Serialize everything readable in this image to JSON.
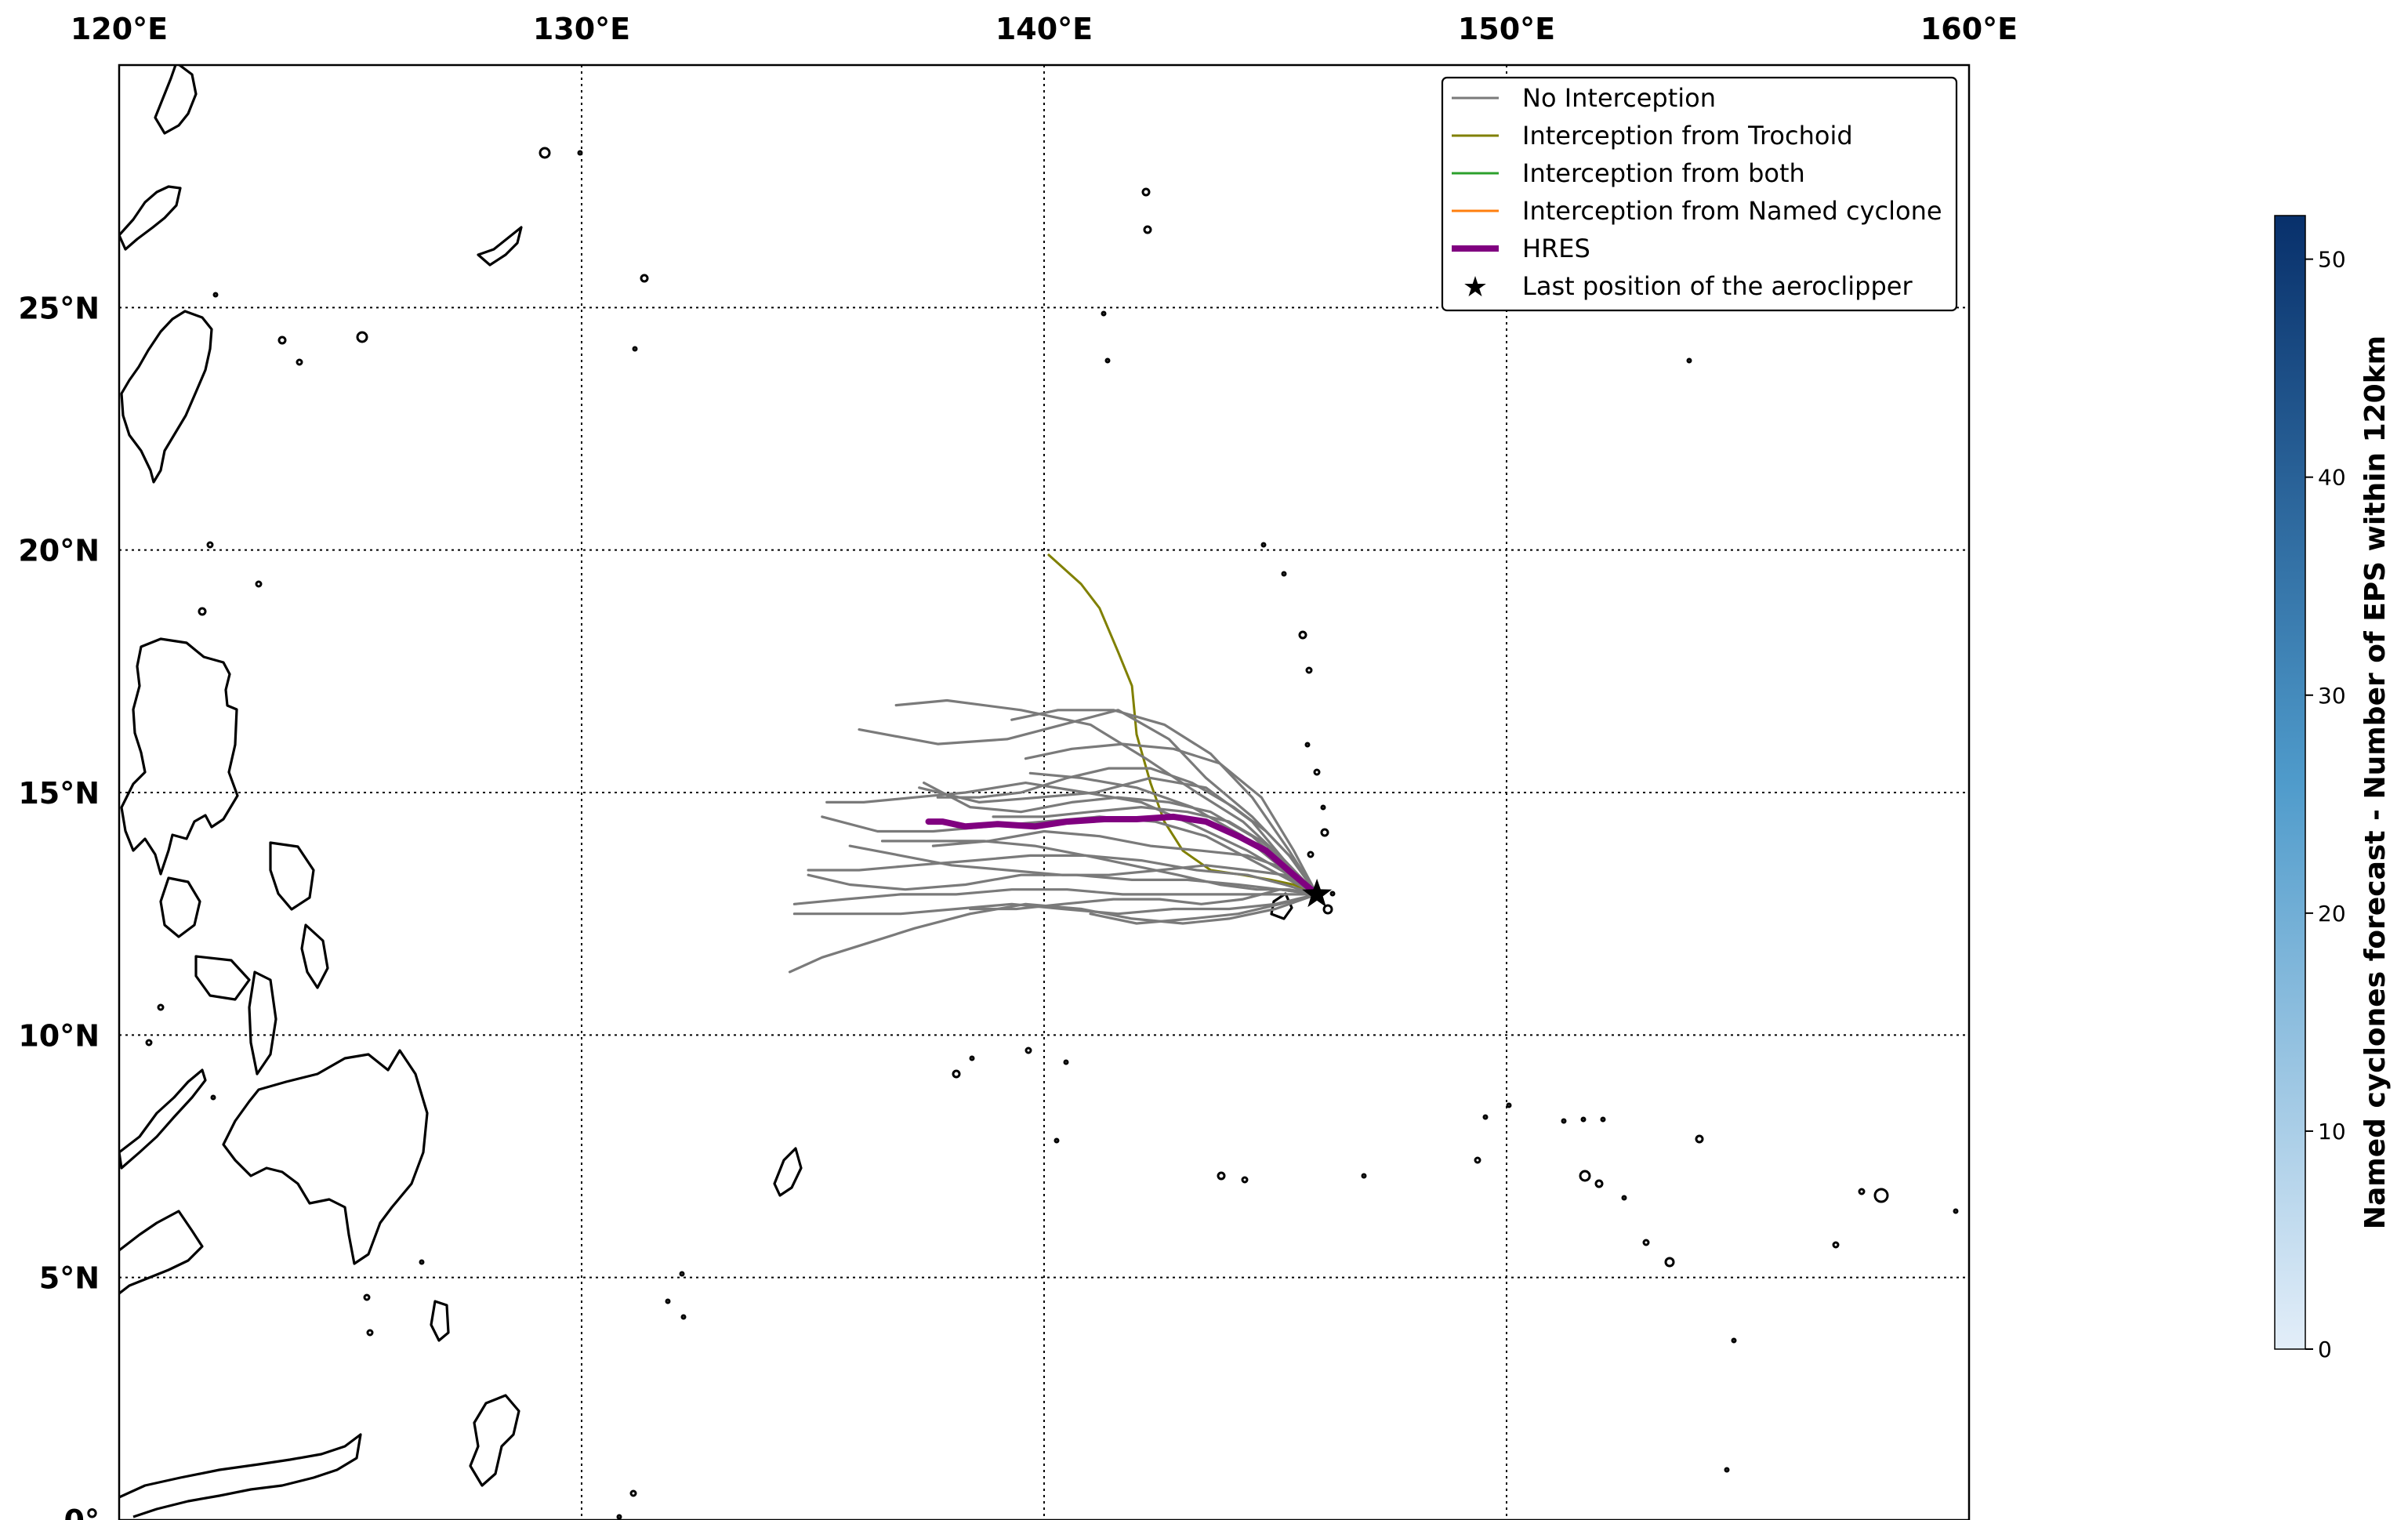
{
  "map": {
    "lon_range": [
      120,
      160
    ],
    "lat_range": [
      0,
      30
    ],
    "lon_ticks": [
      {
        "value": 120,
        "label": "120°E"
      },
      {
        "value": 130,
        "label": "130°E"
      },
      {
        "value": 140,
        "label": "140°E"
      },
      {
        "value": 150,
        "label": "150°E"
      },
      {
        "value": 160,
        "label": "160°E"
      }
    ],
    "lat_ticks": [
      {
        "value": 0,
        "label": "0°"
      },
      {
        "value": 5,
        "label": "5°N"
      },
      {
        "value": 10,
        "label": "10°N"
      },
      {
        "value": 15,
        "label": "15°N"
      },
      {
        "value": 20,
        "label": "20°N"
      },
      {
        "value": 25,
        "label": "25°N"
      }
    ],
    "grid": true,
    "colors": {
      "no_interception": "#7a7a7a",
      "interception_trochoid": "#808000",
      "interception_both": "#2ca02c",
      "interception_named": "#ff7f0e",
      "hres": "#800080",
      "coastline": "#000000"
    }
  },
  "legend": {
    "position": "top-right",
    "entries": [
      {
        "label": "No Interception",
        "style": "line",
        "color": "#7a7a7a"
      },
      {
        "label": "Interception from Trochoid",
        "style": "line",
        "color": "#808000"
      },
      {
        "label": "Interception from both",
        "style": "line",
        "color": "#2ca02c"
      },
      {
        "label": "Interception from Named cyclone",
        "style": "line",
        "color": "#ff7f0e"
      },
      {
        "label": "HRES",
        "style": "thick-line",
        "color": "#800080"
      },
      {
        "label": "Last position of the aeroclipper",
        "style": "star",
        "color": "#000000"
      }
    ]
  },
  "colorbar": {
    "title": "Named cyclones forecast - Number of EPS within 120km",
    "min": 0,
    "max": 52,
    "ticks": [
      "0",
      "10",
      "20",
      "30",
      "40",
      "50"
    ],
    "color_low": "#e3eef9",
    "color_high": "#08306b"
  },
  "chart_data": {
    "type": "line",
    "x_unit": "degrees east",
    "y_unit": "degrees north",
    "aeroclipper_last_position": [
      145.9,
      12.9
    ],
    "series": [
      {
        "category": "HRES",
        "points": [
          [
            145.9,
            12.9
          ],
          [
            145.4,
            13.3
          ],
          [
            144.8,
            13.8
          ],
          [
            144.2,
            14.1
          ],
          [
            143.5,
            14.4
          ],
          [
            142.8,
            14.5
          ],
          [
            142.0,
            14.45
          ],
          [
            141.3,
            14.45
          ],
          [
            140.5,
            14.4
          ],
          [
            139.8,
            14.3
          ],
          [
            139.0,
            14.35
          ],
          [
            138.3,
            14.3
          ],
          [
            137.8,
            14.4
          ],
          [
            137.5,
            14.4
          ]
        ]
      },
      {
        "category": "Interception from Trochoid",
        "points": [
          [
            145.9,
            12.9
          ],
          [
            145.4,
            13.1
          ],
          [
            144.9,
            13.2
          ],
          [
            144.3,
            13.3
          ],
          [
            143.6,
            13.4
          ],
          [
            143.0,
            13.8
          ],
          [
            142.6,
            14.4
          ],
          [
            142.3,
            15.2
          ],
          [
            142.0,
            16.2
          ],
          [
            141.9,
            17.2
          ],
          [
            141.6,
            17.9
          ],
          [
            141.2,
            18.8
          ],
          [
            140.8,
            19.3
          ],
          [
            140.1,
            19.9
          ]
        ]
      },
      {
        "category": "No Interception",
        "points": [
          [
            145.9,
            12.9
          ],
          [
            145.2,
            13.6
          ],
          [
            144.3,
            14.4
          ],
          [
            143.3,
            15.0
          ],
          [
            142.2,
            15.7
          ],
          [
            141.0,
            16.4
          ],
          [
            139.5,
            16.7
          ],
          [
            137.9,
            16.9
          ],
          [
            136.8,
            16.8
          ]
        ]
      },
      {
        "category": "No Interception",
        "points": [
          [
            145.9,
            12.9
          ],
          [
            145.3,
            13.7
          ],
          [
            144.5,
            14.5
          ],
          [
            143.5,
            15.3
          ],
          [
            142.7,
            16.1
          ],
          [
            141.6,
            16.7
          ],
          [
            140.4,
            16.4
          ],
          [
            139.2,
            16.1
          ],
          [
            137.7,
            16.0
          ],
          [
            136.0,
            16.3
          ]
        ]
      },
      {
        "category": "No Interception",
        "points": [
          [
            145.9,
            12.9
          ],
          [
            145.3,
            13.8
          ],
          [
            144.5,
            14.9
          ],
          [
            143.6,
            15.8
          ],
          [
            142.6,
            16.4
          ],
          [
            141.5,
            16.7
          ],
          [
            140.3,
            16.7
          ],
          [
            139.3,
            16.5
          ]
        ]
      },
      {
        "category": "No Interception",
        "points": [
          [
            145.9,
            12.9
          ],
          [
            145.3,
            13.3
          ],
          [
            144.4,
            13.8
          ],
          [
            143.3,
            14.3
          ],
          [
            142.1,
            14.8
          ],
          [
            140.9,
            15.0
          ],
          [
            139.6,
            15.2
          ],
          [
            138.3,
            15.0
          ],
          [
            137.2,
            14.9
          ],
          [
            136.1,
            14.8
          ],
          [
            135.3,
            14.8
          ]
        ]
      },
      {
        "category": "No Interception",
        "points": [
          [
            145.9,
            12.9
          ],
          [
            145.2,
            13.6
          ],
          [
            144.5,
            14.4
          ],
          [
            143.5,
            15.1
          ],
          [
            142.3,
            15.3
          ],
          [
            141.1,
            15.0
          ],
          [
            139.9,
            14.9
          ],
          [
            138.6,
            14.8
          ],
          [
            137.3,
            15.1
          ]
        ]
      },
      {
        "category": "No Interception",
        "points": [
          [
            145.9,
            12.9
          ],
          [
            145.3,
            13.2
          ],
          [
            144.5,
            13.6
          ],
          [
            143.5,
            14.1
          ],
          [
            142.4,
            14.4
          ],
          [
            141.2,
            14.5
          ],
          [
            140.0,
            14.4
          ],
          [
            138.8,
            14.3
          ],
          [
            137.6,
            14.2
          ],
          [
            136.4,
            14.2
          ],
          [
            135.2,
            14.5
          ]
        ]
      },
      {
        "category": "No Interception",
        "points": [
          [
            145.9,
            12.9
          ],
          [
            145.3,
            13.4
          ],
          [
            144.4,
            13.7
          ],
          [
            143.4,
            13.8
          ],
          [
            142.3,
            13.9
          ],
          [
            141.2,
            14.1
          ],
          [
            140.0,
            14.2
          ],
          [
            138.8,
            14.0
          ],
          [
            137.6,
            13.9
          ]
        ]
      },
      {
        "category": "No Interception",
        "points": [
          [
            145.9,
            12.9
          ],
          [
            145.2,
            13.1
          ],
          [
            144.4,
            13.3
          ],
          [
            143.3,
            13.4
          ],
          [
            142.1,
            13.6
          ],
          [
            140.9,
            13.7
          ],
          [
            139.7,
            13.7
          ],
          [
            138.5,
            13.6
          ],
          [
            137.2,
            13.5
          ],
          [
            136.0,
            13.4
          ],
          [
            134.9,
            13.4
          ]
        ]
      },
      {
        "category": "No Interception",
        "points": [
          [
            145.9,
            12.9
          ],
          [
            145.1,
            13.0
          ],
          [
            144.2,
            13.1
          ],
          [
            143.1,
            13.2
          ],
          [
            141.9,
            13.2
          ],
          [
            140.7,
            13.3
          ],
          [
            139.5,
            13.3
          ],
          [
            138.3,
            13.1
          ],
          [
            137.0,
            13.0
          ],
          [
            135.8,
            13.1
          ],
          [
            134.9,
            13.3
          ]
        ]
      },
      {
        "category": "No Interception",
        "points": [
          [
            145.9,
            12.9
          ],
          [
            145.0,
            12.9
          ],
          [
            144.0,
            12.9
          ],
          [
            142.9,
            12.9
          ],
          [
            141.7,
            12.9
          ],
          [
            140.5,
            13.0
          ],
          [
            139.3,
            13.0
          ],
          [
            138.1,
            12.9
          ],
          [
            136.9,
            12.9
          ],
          [
            135.7,
            12.8
          ],
          [
            134.6,
            12.7
          ]
        ]
      },
      {
        "category": "No Interception",
        "points": [
          [
            145.9,
            12.9
          ],
          [
            145.0,
            12.7
          ],
          [
            144.0,
            12.6
          ],
          [
            142.8,
            12.6
          ],
          [
            141.6,
            12.5
          ],
          [
            140.4,
            12.6
          ],
          [
            139.3,
            12.7
          ],
          [
            138.1,
            12.6
          ],
          [
            136.9,
            12.5
          ],
          [
            135.7,
            12.5
          ],
          [
            134.6,
            12.5
          ]
        ]
      },
      {
        "category": "No Interception",
        "points": [
          [
            145.9,
            12.9
          ],
          [
            145.1,
            12.7
          ],
          [
            144.2,
            12.5
          ],
          [
            143.2,
            12.4
          ],
          [
            142.0,
            12.3
          ],
          [
            141.0,
            12.5
          ]
        ]
      },
      {
        "category": "No Interception",
        "points": [
          [
            145.9,
            12.9
          ],
          [
            145.0,
            12.6
          ],
          [
            144.0,
            12.4
          ],
          [
            143.0,
            12.3
          ],
          [
            141.9,
            12.4
          ],
          [
            140.8,
            12.6
          ],
          [
            139.6,
            12.7
          ],
          [
            138.4,
            12.5
          ],
          [
            137.2,
            12.2
          ],
          [
            136.2,
            11.9
          ],
          [
            135.2,
            11.6
          ],
          [
            134.5,
            11.3
          ]
        ]
      },
      {
        "category": "No Interception",
        "points": [
          [
            145.9,
            12.9
          ],
          [
            145.2,
            13.4
          ],
          [
            144.3,
            14.1
          ],
          [
            143.2,
            14.7
          ],
          [
            142.0,
            15.1
          ],
          [
            140.8,
            15.3
          ],
          [
            139.7,
            15.4
          ]
        ]
      },
      {
        "category": "No Interception",
        "points": [
          [
            145.9,
            12.9
          ],
          [
            145.2,
            13.5
          ],
          [
            144.5,
            14.1
          ],
          [
            143.6,
            14.6
          ],
          [
            142.7,
            14.8
          ],
          [
            141.6,
            14.9
          ],
          [
            140.6,
            14.8
          ],
          [
            139.5,
            14.6
          ],
          [
            138.4,
            14.7
          ],
          [
            137.4,
            15.2
          ]
        ]
      },
      {
        "category": "No Interception",
        "points": [
          [
            145.9,
            12.9
          ],
          [
            145.3,
            13.0
          ],
          [
            144.6,
            13.0
          ],
          [
            143.8,
            13.1
          ],
          [
            142.9,
            13.3
          ],
          [
            141.9,
            13.5
          ],
          [
            140.9,
            13.7
          ],
          [
            139.8,
            13.9
          ],
          [
            138.7,
            14.0
          ],
          [
            137.6,
            14.0
          ],
          [
            136.5,
            14.0
          ]
        ]
      },
      {
        "category": "No Interception",
        "points": [
          [
            145.9,
            12.9
          ],
          [
            145.2,
            13.3
          ],
          [
            144.4,
            13.4
          ],
          [
            143.5,
            13.5
          ],
          [
            142.5,
            13.4
          ],
          [
            141.4,
            13.3
          ],
          [
            140.4,
            13.3
          ],
          [
            139.2,
            13.4
          ],
          [
            138.0,
            13.5
          ],
          [
            136.9,
            13.7
          ],
          [
            135.8,
            13.9
          ]
        ]
      },
      {
        "category": "No Interception",
        "points": [
          [
            145.9,
            12.9
          ],
          [
            145.3,
            13.5
          ],
          [
            144.7,
            14.0
          ],
          [
            144.0,
            14.4
          ],
          [
            143.1,
            14.6
          ],
          [
            142.1,
            14.7
          ],
          [
            141.0,
            14.6
          ],
          [
            140.0,
            14.5
          ],
          [
            138.9,
            14.5
          ]
        ]
      },
      {
        "category": "No Interception",
        "points": [
          [
            145.9,
            12.9
          ],
          [
            145.4,
            13.8
          ],
          [
            144.7,
            14.9
          ],
          [
            143.8,
            15.6
          ],
          [
            142.8,
            15.9
          ],
          [
            141.7,
            16.0
          ],
          [
            140.6,
            15.9
          ],
          [
            139.6,
            15.7
          ]
        ]
      },
      {
        "category": "No Interception",
        "points": [
          [
            145.9,
            12.9
          ],
          [
            145.1,
            13.0
          ],
          [
            144.3,
            12.8
          ],
          [
            143.4,
            12.7
          ],
          [
            142.5,
            12.8
          ],
          [
            141.5,
            12.8
          ],
          [
            140.4,
            12.7
          ],
          [
            139.4,
            12.6
          ],
          [
            138.4,
            12.6
          ]
        ]
      },
      {
        "category": "No Interception",
        "points": [
          [
            145.9,
            12.9
          ],
          [
            145.4,
            13.6
          ],
          [
            144.8,
            14.2
          ],
          [
            144.1,
            14.7
          ],
          [
            143.2,
            15.2
          ],
          [
            142.3,
            15.5
          ],
          [
            141.4,
            15.5
          ],
          [
            140.5,
            15.3
          ],
          [
            139.5,
            15.0
          ],
          [
            138.6,
            14.9
          ],
          [
            137.7,
            14.9
          ]
        ]
      }
    ]
  }
}
